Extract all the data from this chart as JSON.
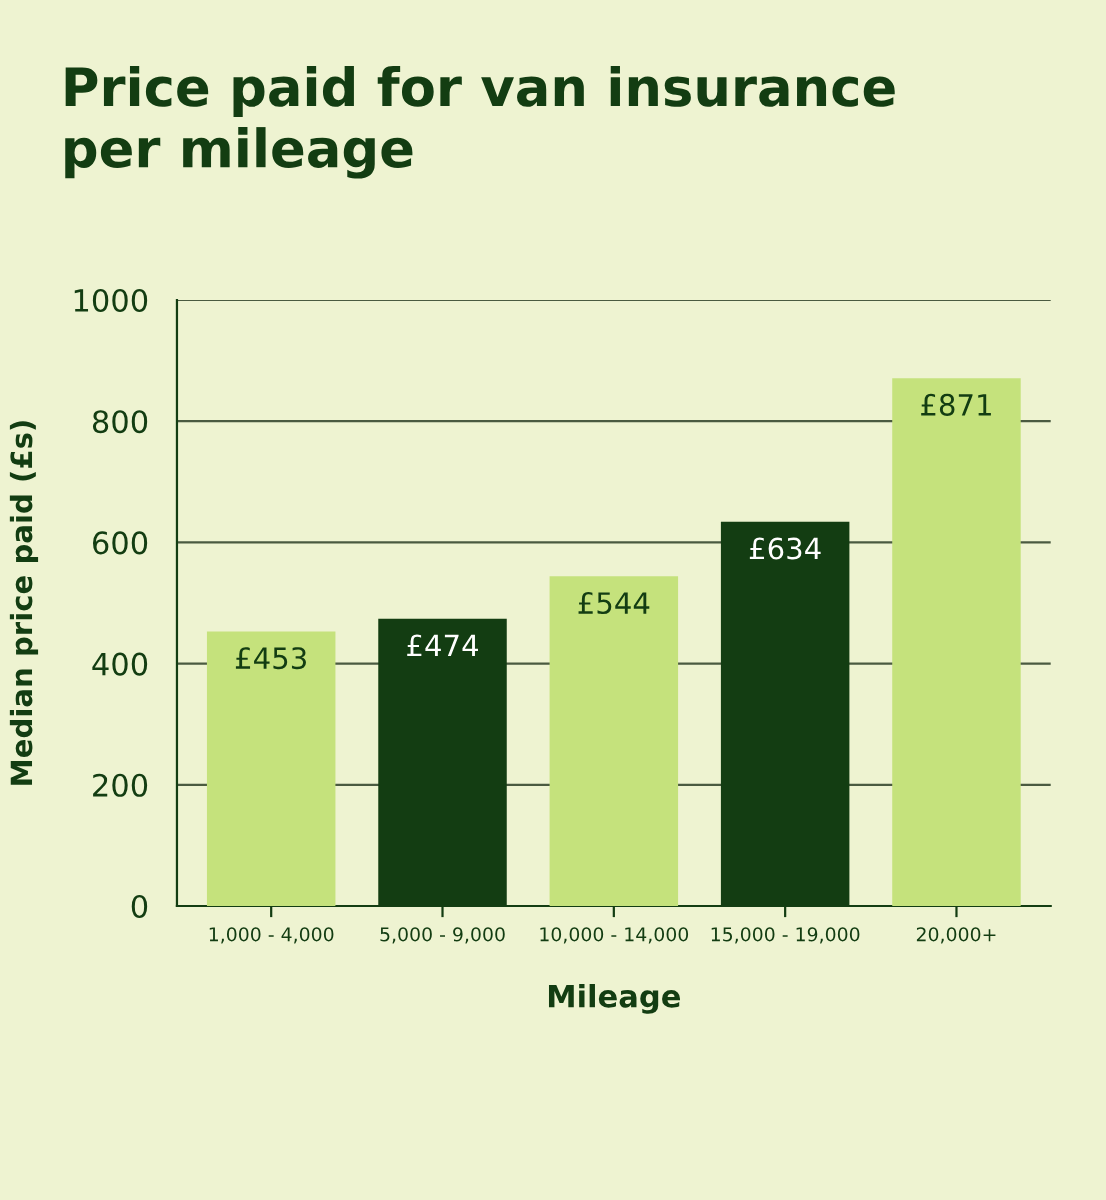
{
  "chart_data": {
    "type": "bar",
    "title": "Price paid for van insurance\nper mileage",
    "xlabel": "Mileage",
    "ylabel": "Median price paid (£s)",
    "categories": [
      "1,000 - 4,000",
      "5,000 - 9,000",
      "10,000 - 14,000",
      "15,000 - 19,000",
      "20,000+"
    ],
    "values": [
      453,
      474,
      544,
      634,
      871
    ],
    "value_labels": [
      "£453",
      "£474",
      "£544",
      "£634",
      "£871"
    ],
    "colors": [
      "#c5e27c",
      "#133d12",
      "#c5e27c",
      "#133d12",
      "#c5e27c"
    ],
    "ylim": [
      0,
      1000
    ],
    "yticks": [
      0,
      200,
      400,
      600,
      800,
      1000
    ],
    "grid": "y",
    "legend": false
  }
}
